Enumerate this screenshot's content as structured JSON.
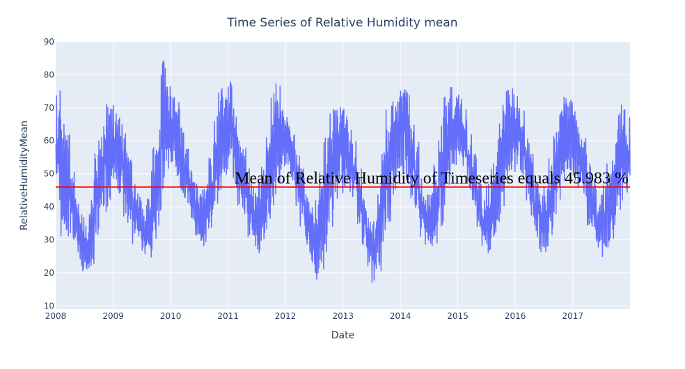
{
  "chart_data": {
    "type": "line",
    "title": "Time Series of Relative Humidity mean",
    "xlabel": "Date",
    "ylabel": "RelativeHumidityMean",
    "x_range": [
      "2008-01-01",
      "2017-12-31"
    ],
    "x_ticks": [
      "2008",
      "2009",
      "2010",
      "2011",
      "2012",
      "2013",
      "2014",
      "2015",
      "2016",
      "2017"
    ],
    "ylim": [
      9,
      90
    ],
    "y_ticks": [
      10,
      20,
      30,
      40,
      50,
      60,
      70,
      80,
      90
    ],
    "grid": true,
    "series": [
      {
        "color": "#636efa",
        "x": [
          "2008-01",
          "2008-02",
          "2008-03",
          "2008-04",
          "2008-05",
          "2008-06",
          "2008-07",
          "2008-08",
          "2008-09",
          "2008-10",
          "2008-11",
          "2008-12",
          "2009-01",
          "2009-02",
          "2009-03",
          "2009-04",
          "2009-05",
          "2009-06",
          "2009-07",
          "2009-08",
          "2009-09",
          "2009-10",
          "2009-11",
          "2009-12",
          "2010-01",
          "2010-02",
          "2010-03",
          "2010-04",
          "2010-05",
          "2010-06",
          "2010-07",
          "2010-08",
          "2010-09",
          "2010-10",
          "2010-11",
          "2010-12",
          "2011-01",
          "2011-02",
          "2011-03",
          "2011-04",
          "2011-05",
          "2011-06",
          "2011-07",
          "2011-08",
          "2011-09",
          "2011-10",
          "2011-11",
          "2011-12",
          "2012-01",
          "2012-02",
          "2012-03",
          "2012-04",
          "2012-05",
          "2012-06",
          "2012-07",
          "2012-08",
          "2012-09",
          "2012-10",
          "2012-11",
          "2012-12",
          "2013-01",
          "2013-02",
          "2013-03",
          "2013-04",
          "2013-05",
          "2013-06",
          "2013-07",
          "2013-08",
          "2013-09",
          "2013-10",
          "2013-11",
          "2013-12",
          "2014-01",
          "2014-02",
          "2014-03",
          "2014-04",
          "2014-05",
          "2014-06",
          "2014-07",
          "2014-08",
          "2014-09",
          "2014-10",
          "2014-11",
          "2014-12",
          "2015-01",
          "2015-02",
          "2015-03",
          "2015-04",
          "2015-05",
          "2015-06",
          "2015-07",
          "2015-08",
          "2015-09",
          "2015-10",
          "2015-11",
          "2015-12",
          "2016-01",
          "2016-02",
          "2016-03",
          "2016-04",
          "2016-05",
          "2016-06",
          "2016-07",
          "2016-08",
          "2016-09",
          "2016-10",
          "2016-11",
          "2016-12",
          "2017-01",
          "2017-02",
          "2017-03",
          "2017-04",
          "2017-05",
          "2017-06",
          "2017-07",
          "2017-08",
          "2017-09",
          "2017-10",
          "2017-11",
          "2017-12"
        ],
        "low": [
          37,
          30,
          28,
          30,
          25,
          20,
          18,
          22,
          30,
          36,
          38,
          42,
          45,
          44,
          36,
          34,
          28,
          25,
          24,
          22,
          26,
          34,
          45,
          50,
          52,
          48,
          42,
          40,
          35,
          30,
          28,
          28,
          32,
          38,
          44,
          48,
          50,
          46,
          40,
          36,
          30,
          28,
          26,
          26,
          32,
          40,
          46,
          50,
          52,
          48,
          40,
          34,
          28,
          22,
          18,
          20,
          26,
          34,
          40,
          44,
          46,
          44,
          40,
          34,
          28,
          22,
          16,
          20,
          28,
          35,
          42,
          48,
          50,
          48,
          42,
          36,
          30,
          26,
          26,
          28,
          34,
          40,
          46,
          52,
          55,
          50,
          45,
          38,
          32,
          28,
          26,
          28,
          34,
          40,
          46,
          50,
          52,
          48,
          42,
          36,
          30,
          26,
          26,
          28,
          35,
          42,
          48,
          50,
          48,
          44,
          40,
          34,
          30,
          26,
          24,
          26,
          30,
          36,
          40,
          42
        ],
        "high": [
          77,
          69,
          62,
          52,
          45,
          38,
          35,
          42,
          58,
          64,
          72,
          70,
          71,
          68,
          63,
          56,
          48,
          44,
          40,
          46,
          58,
          70,
          86,
          78,
          75,
          72,
          65,
          58,
          52,
          48,
          46,
          50,
          58,
          68,
          76,
          78,
          78,
          70,
          64,
          58,
          52,
          46,
          48,
          54,
          66,
          75,
          78,
          70,
          68,
          62,
          58,
          52,
          44,
          40,
          42,
          52,
          62,
          70,
          74,
          72,
          70,
          66,
          60,
          52,
          44,
          38,
          36,
          46,
          60,
          70,
          74,
          78,
          80,
          76,
          68,
          60,
          50,
          44,
          48,
          56,
          66,
          74,
          78,
          76,
          74,
          70,
          64,
          56,
          48,
          42,
          48,
          56,
          66,
          74,
          78,
          76,
          74,
          70,
          64,
          56,
          48,
          44,
          48,
          56,
          66,
          72,
          75,
          76,
          72,
          68,
          62,
          56,
          48,
          44,
          48,
          54,
          62,
          70,
          74,
          67
        ]
      }
    ],
    "hline": {
      "y": 45.983,
      "color": "#ff0000"
    },
    "annotation": "Mean of Relative Humidity of Timeseries equals 45.983 %"
  }
}
